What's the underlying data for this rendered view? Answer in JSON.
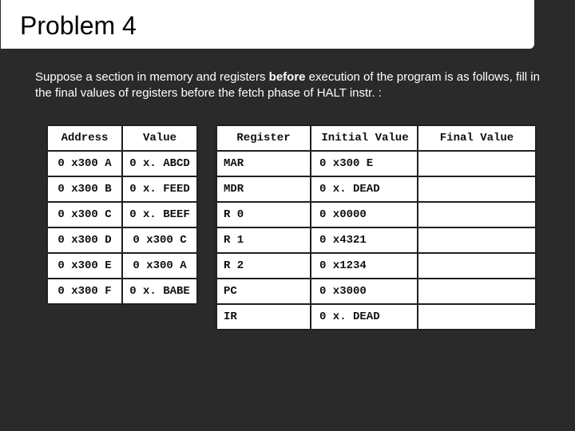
{
  "title": "Problem 4",
  "paragraph_pre": "Suppose a section in memory and registers ",
  "paragraph_bold": "before ",
  "paragraph_post": "execution of the program is as follows, fill in the final values of registers before the fetch phase of HALT instr. :",
  "memory_table": {
    "headers": [
      "Address",
      "Value"
    ],
    "rows": [
      [
        "0 x300 A",
        "0 x. ABCD"
      ],
      [
        "0 x300 B",
        "0 x. FEED"
      ],
      [
        "0 x300 C",
        "0 x. BEEF"
      ],
      [
        "0 x300 D",
        "0 x300 C"
      ],
      [
        "0 x300 E",
        "0 x300 A"
      ],
      [
        "0 x300 F",
        "0 x. BABE"
      ]
    ]
  },
  "register_table": {
    "headers": [
      "Register",
      "Initial Value",
      "Final Value"
    ],
    "rows": [
      [
        "MAR",
        "0 x300 E",
        ""
      ],
      [
        "MDR",
        "0 x. DEAD",
        ""
      ],
      [
        "R 0",
        "0 x0000",
        ""
      ],
      [
        "R 1",
        "0 x4321",
        ""
      ],
      [
        "R 2",
        "0 x1234",
        ""
      ],
      [
        "PC",
        "0 x3000",
        ""
      ],
      [
        "IR",
        "0 x. DEAD",
        ""
      ]
    ]
  },
  "colors": {
    "slide_bg": "#2a2a2a",
    "title_bg": "#ffffff",
    "title_text": "#000000",
    "body_text": "#ffffff",
    "cell_bg": "#ffffff",
    "cell_text": "#0f0f0f",
    "border": "#202020"
  },
  "fonts": {
    "title_size_pt": 32,
    "body_size_pt": 15,
    "table_family": "Courier New",
    "table_size_pt": 14
  }
}
